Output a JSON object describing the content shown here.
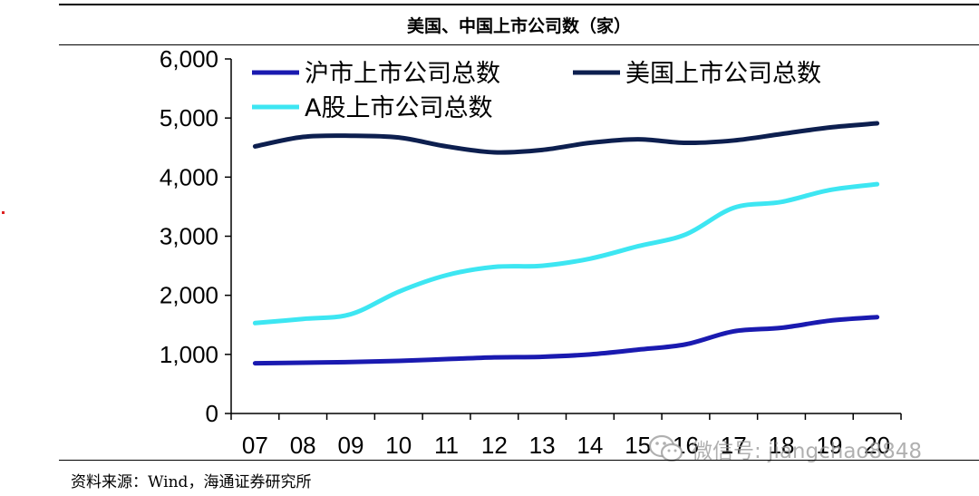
{
  "title": "美国、中国上市公司数（家）",
  "source": "资料来源：Wind，海通证券研究所",
  "watermark": "微信号: jiangchao8848",
  "chart_data": {
    "type": "line",
    "categories": [
      "07",
      "08",
      "09",
      "10",
      "11",
      "12",
      "13",
      "14",
      "15",
      "16",
      "17",
      "18",
      "19",
      "20"
    ],
    "ylim": [
      0,
      6000
    ],
    "yticks": [
      0,
      1000,
      2000,
      3000,
      4000,
      5000,
      6000
    ],
    "ytick_labels": [
      "0",
      "1,000",
      "2,000",
      "3,000",
      "4,000",
      "5,000",
      "6,000"
    ],
    "grid": false,
    "legend_position": "top",
    "series": [
      {
        "name": "沪市上市公司总数",
        "color": "#1a1ab0",
        "values": [
          850,
          860,
          870,
          890,
          920,
          950,
          960,
          1000,
          1080,
          1170,
          1390,
          1450,
          1570,
          1630
        ]
      },
      {
        "name": "美国上市公司总数",
        "color": "#0d1f4f",
        "values": [
          4520,
          4680,
          4700,
          4670,
          4520,
          4420,
          4460,
          4580,
          4640,
          4580,
          4620,
          4730,
          4840,
          4910
        ]
      },
      {
        "name": "A股上市公司总数",
        "color": "#3de6f2",
        "values": [
          1530,
          1600,
          1680,
          2060,
          2340,
          2480,
          2500,
          2620,
          2830,
          3030,
          3480,
          3580,
          3780,
          3880
        ]
      }
    ]
  }
}
